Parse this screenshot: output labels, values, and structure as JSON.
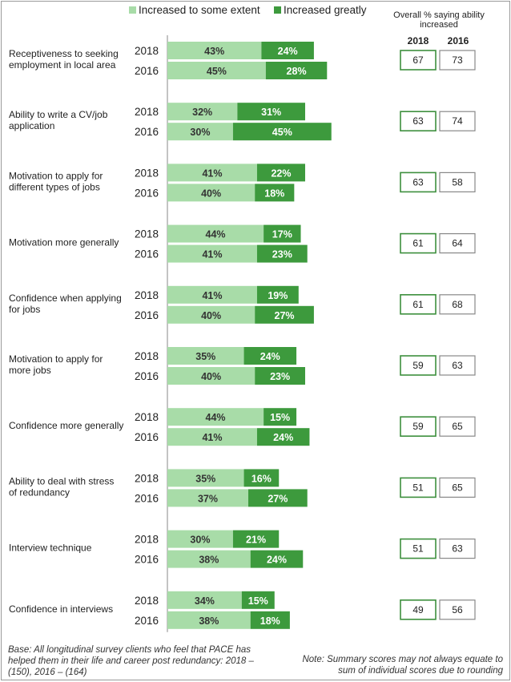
{
  "chart_data": {
    "type": "bar",
    "stacked": true,
    "orientation": "horizontal",
    "series": [
      {
        "name": "Increased to some extent",
        "color": "#a8dca8"
      },
      {
        "name": "Increased greatly",
        "color": "#3d9a3d"
      }
    ],
    "summary_header": "Overall % saying ability increased",
    "summary_years": [
      "2018",
      "2016"
    ],
    "categories": [
      {
        "label": "Receptiveness to seeking employment in local area",
        "rows": [
          {
            "year": "2018",
            "some": 43,
            "greatly": 24
          },
          {
            "year": "2016",
            "some": 45,
            "greatly": 28
          }
        ],
        "overall": {
          "2018": 67,
          "2016": 73
        }
      },
      {
        "label": "Ability to write a CV/job application",
        "rows": [
          {
            "year": "2018",
            "some": 32,
            "greatly": 31
          },
          {
            "year": "2016",
            "some": 30,
            "greatly": 45
          }
        ],
        "overall": {
          "2018": 63,
          "2016": 74
        }
      },
      {
        "label": "Motivation to apply for different types of jobs",
        "rows": [
          {
            "year": "2018",
            "some": 41,
            "greatly": 22
          },
          {
            "year": "2016",
            "some": 40,
            "greatly": 18
          }
        ],
        "overall": {
          "2018": 63,
          "2016": 58
        }
      },
      {
        "label": "Motivation more generally",
        "rows": [
          {
            "year": "2018",
            "some": 44,
            "greatly": 17
          },
          {
            "year": "2016",
            "some": 41,
            "greatly": 23
          }
        ],
        "overall": {
          "2018": 61,
          "2016": 64
        }
      },
      {
        "label": "Confidence when applying for jobs",
        "rows": [
          {
            "year": "2018",
            "some": 41,
            "greatly": 19
          },
          {
            "year": "2016",
            "some": 40,
            "greatly": 27
          }
        ],
        "overall": {
          "2018": 61,
          "2016": 68
        }
      },
      {
        "label": "Motivation to apply for more jobs",
        "rows": [
          {
            "year": "2018",
            "some": 35,
            "greatly": 24
          },
          {
            "year": "2016",
            "some": 40,
            "greatly": 23
          }
        ],
        "overall": {
          "2018": 59,
          "2016": 63
        }
      },
      {
        "label": "Confidence more generally",
        "rows": [
          {
            "year": "2018",
            "some": 44,
            "greatly": 15
          },
          {
            "year": "2016",
            "some": 41,
            "greatly": 24
          }
        ],
        "overall": {
          "2018": 59,
          "2016": 65
        }
      },
      {
        "label": "Ability to deal with stress of redundancy",
        "rows": [
          {
            "year": "2018",
            "some": 35,
            "greatly": 16
          },
          {
            "year": "2016",
            "some": 37,
            "greatly": 27
          }
        ],
        "overall": {
          "2018": 51,
          "2016": 65
        }
      },
      {
        "label": "Interview technique",
        "rows": [
          {
            "year": "2018",
            "some": 30,
            "greatly": 21
          },
          {
            "year": "2016",
            "some": 38,
            "greatly": 24
          }
        ],
        "overall": {
          "2018": 51,
          "2016": 63
        }
      },
      {
        "label": "Confidence in interviews",
        "rows": [
          {
            "year": "2018",
            "some": 34,
            "greatly": 15
          },
          {
            "year": "2016",
            "some": 38,
            "greatly": 18
          }
        ],
        "overall": {
          "2018": 49,
          "2016": 56
        }
      }
    ],
    "value_suffix": "%"
  },
  "notes": {
    "base": "Base: All longitudinal survey clients who feel that PACE has helped them in their life and career post redundancy: 2018 – (150), 2016 – (164)",
    "summary": "Note: Summary scores may not always equate to sum of individual scores due to rounding"
  }
}
